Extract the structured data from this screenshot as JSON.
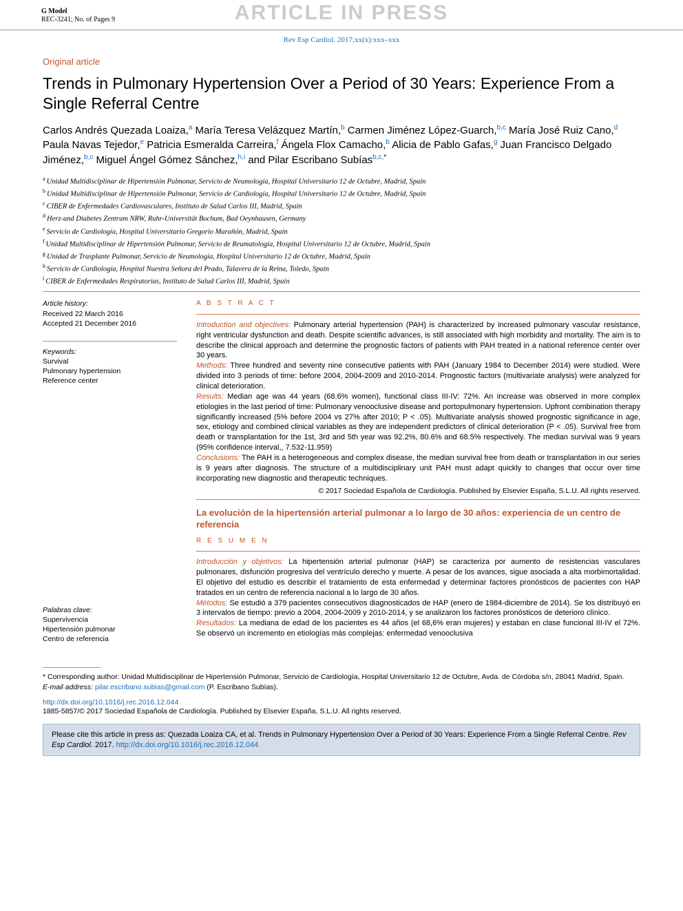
{
  "header": {
    "gmodel_label": "G Model",
    "gmodel_ref": "REC-3241; No. of Pages 9",
    "watermark": "ARTICLE IN PRESS",
    "journal_cite": "Rev Esp Cardiol. 2017;xx(x):xxx–xxx"
  },
  "article_type": "Original article",
  "title": "Trends in Pulmonary Hypertension Over a Period of 30 Years: Experience From a Single Referral Centre",
  "authors": [
    {
      "name": "Carlos Andrés Quezada Loaiza,",
      "sup": "a"
    },
    {
      "name": " María Teresa Velázquez Martín,",
      "sup": "b"
    },
    {
      "name": " Carmen Jiménez López-Guarch,",
      "sup": "b,c"
    },
    {
      "name": " María José Ruiz Cano,",
      "sup": "d"
    },
    {
      "name": " Paula Navas Tejedor,",
      "sup": "e"
    },
    {
      "name": " Patricia Esmeralda Carreira,",
      "sup": "f"
    },
    {
      "name": " Ángela Flox Camacho,",
      "sup": "b"
    },
    {
      "name": " Alicia de Pablo Gafas,",
      "sup": "g"
    },
    {
      "name": " Juan Francisco Delgado Jiménez,",
      "sup": "b,c"
    },
    {
      "name": " Miguel Ángel Gómez Sánchez,",
      "sup": "h,i"
    },
    {
      "name": " and Pilar Escribano Subías",
      "sup": "b,c,",
      "star": "*"
    }
  ],
  "affiliations": [
    {
      "sup": "a",
      "text": "Unidad Multidisciplinar de Hipertensión Pulmonar, Servicio de Neumología, Hospital Universitario 12 de Octubre, Madrid, Spain"
    },
    {
      "sup": "b",
      "text": "Unidad Multidisciplinar de Hipertensión Pulmonar, Servicio de Cardiología, Hospital Universitario 12 de Octubre, Madrid, Spain"
    },
    {
      "sup": "c",
      "text": "CIBER de Enfermedades Cardiovasculares, Instituto de Salud Carlos III, Madrid, Spain"
    },
    {
      "sup": "d",
      "text": "Herz-und Diabetes Zentrum NRW, Ruhr-Universität Bochum, Bad Oeynhausen, Germany"
    },
    {
      "sup": "e",
      "text": "Servicio de Cardiología, Hospital Universitario Gregorio Marañón, Madrid, Spain"
    },
    {
      "sup": "f",
      "text": "Unidad Multidisciplinar de Hipertensión Pulmonar, Servicio de Reumatología, Hospital Universitario 12 de Octubre, Madrid, Spain"
    },
    {
      "sup": "g",
      "text": "Unidad de Trasplante Pulmonar, Servicio de Neumología, Hospital Universitario 12 de Octubre, Madrid, Spain"
    },
    {
      "sup": "h",
      "text": "Servicio de Cardiología, Hospital Nuestra Señora del Prado, Talavera de la Reina, Toledo, Spain"
    },
    {
      "sup": "i",
      "text": "CIBER de Enfermedades Respiratorias, Instituto de Salud Carlos III, Madrid, Spain"
    }
  ],
  "history": {
    "label": "Article history:",
    "received": "Received 22 March 2016",
    "accepted": "Accepted 21 December 2016"
  },
  "keywords": {
    "label": "Keywords:",
    "items": [
      "Survival",
      "Pulmonary hypertension",
      "Reference center"
    ]
  },
  "palabras": {
    "label": "Palabras clave:",
    "items": [
      "Supervivencia",
      "Hipertensión pulmonar",
      "Centro de referencia"
    ]
  },
  "abstract_label": "A B S T R A C T",
  "abstract": {
    "intro_label": "Introduction and objectives:",
    "intro": " Pulmonary arterial hypertension (PAH) is characterized by increased pulmonary vascular resistance, right ventricular dysfunction and death. Despite scientific advances, is still associated with high morbidity and mortality. The aim is to describe the clinical approach and determine the prognostic factors of patients with PAH treated in a national reference center over 30 years.",
    "methods_label": "Methods:",
    "methods": " Three hundred and seventy nine consecutive patients with PAH (January 1984 to December 2014) were studied. Were divided into 3 periods of time: before 2004, 2004-2009 and 2010-2014. Prognostic factors (multivariate analysis) were analyzed for clinical deterioration.",
    "results_label": "Results:",
    "results": "  Median age was 44 years (68.6% women), functional class III-IV: 72%. An increase was observed in more complex etiologies in the last period of time: Pulmonary venooclusive disease and portopulmonary hypertension. Upfront combination therapy significantly increased (5% before 2004 vs 27% after 2010; P < .05). Multivariate analysis showed prognostic significance in age, sex, etiology and combined clinical variables as they are independent predictors of clinical deterioration (P < .05). Survival free from death or transplantation for the 1st, 3rd and 5th year was 92.2%, 80.6% and 68.5% respectively. The median survival was 9 years (95% confidence interval,, 7.532-11.959)",
    "conclusions_label": "Conclusions:",
    "conclusions": " The PAH is a heterogeneous and complex disease, the median survival free from death or transplantation in our series is 9 years after diagnosis. The structure of a multidisciplinary unit PAH must adapt quickly to changes that occur over time incorporating new diagnostic and therapeutic techniques.",
    "copyright": "© 2017 Sociedad Española de Cardiología. Published by Elsevier España, S.L.U. All rights reserved."
  },
  "es_title": "La evolución de la hipertensión arterial pulmonar a lo largo de 30 años: experiencia de un centro de referencia",
  "resumen_label": "R E S U M E N",
  "resumen": {
    "intro_label": "Introducción y objetivos:",
    "intro": " La hipertensión arterial pulmonar (HAP) se caracteriza por aumento de resistencias vasculares pulmonares, disfunción progresiva del ventrículo derecho y muerte. A pesar de los avances, sigue asociada a alta morbimortalidad. El objetivo del estudio es describir el tratamiento de esta enfermedad y determinar factores pronósticos de pacientes con HAP tratados en un centro de referencia nacional a lo largo de 30 años.",
    "methods_label": "Métodos:",
    "methods": " Se estudió a 379 pacientes consecutivos diagnosticados de HAP (enero de 1984-diciembre de 2014). Se los distribuyó en 3 intervalos de tiempo: previo a 2004, 2004-2009 y 2010-2014, y se analizaron los factores pronósticos de deterioro clínico.",
    "results_label": "Resultados:",
    "results": " La mediana de edad de los pacientes es 44 años (el 68,6% eran mujeres) y estaban en clase funcional III-IV el 72%. Se observó un incremento en etiologías más complejas: enfermedad venooclusiva"
  },
  "corresponding": {
    "text": "* Corresponding author: Unidad Multidisciplinar de Hipertensión Pulmonar, Servicio de Cardiología, Hospital Universitario 12 de Octubre, Avda. de Córdoba s/n, 28041 Madrid, Spain.",
    "email_label": "E-mail address:",
    "email": "pilar.escribano.subias@gmail.com",
    "email_who": " (P. Escribano Subías)."
  },
  "doi": "http://dx.doi.org/10.1016/j.rec.2016.12.044",
  "foot_copyright": "1885-5857/© 2017 Sociedad Española de Cardiología. Published by Elsevier España, S.L.U. All rights reserved.",
  "citebox": {
    "pre": "Please cite this article in press as: Quezada Loaiza CA, et al. Trends in Pulmonary Hypertension Over a Period of 30 Years: Experience From a Single Referral Centre. ",
    "ital": "Rev Esp Cardiol.",
    "post": " 2017. ",
    "link": "http://dx.doi.org/10.1016/j.rec.2016.12.044"
  },
  "colors": {
    "accent_orange": "#c2552e",
    "link_blue": "#1a6dbb",
    "rule_orange": "#d97a4f",
    "box_bg": "#d4dde9",
    "box_border": "#a8b6cc",
    "watermark_grey": "#cccccc"
  }
}
